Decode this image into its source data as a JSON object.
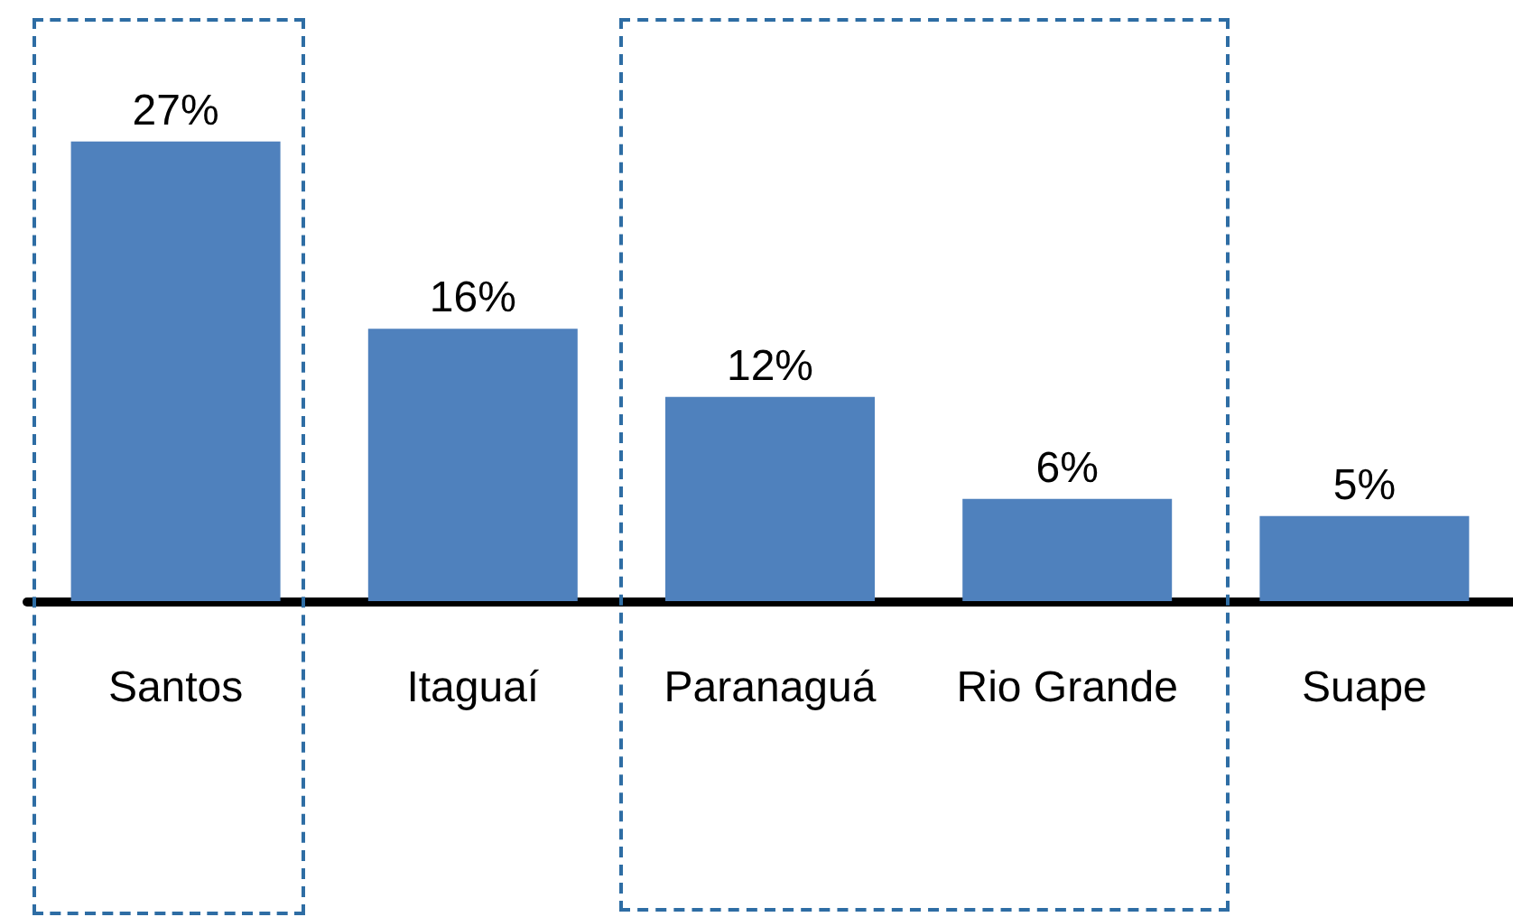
{
  "chart_data": {
    "type": "bar",
    "categories": [
      "Santos",
      "Itaguaí",
      "Paranaguá",
      "Rio Grande",
      "Suape"
    ],
    "values": [
      27,
      16,
      12,
      6,
      5
    ],
    "color": "#4f81bd",
    "value_labels": [
      "27%",
      "16%",
      "12%",
      "6%",
      "5%"
    ]
  }
}
